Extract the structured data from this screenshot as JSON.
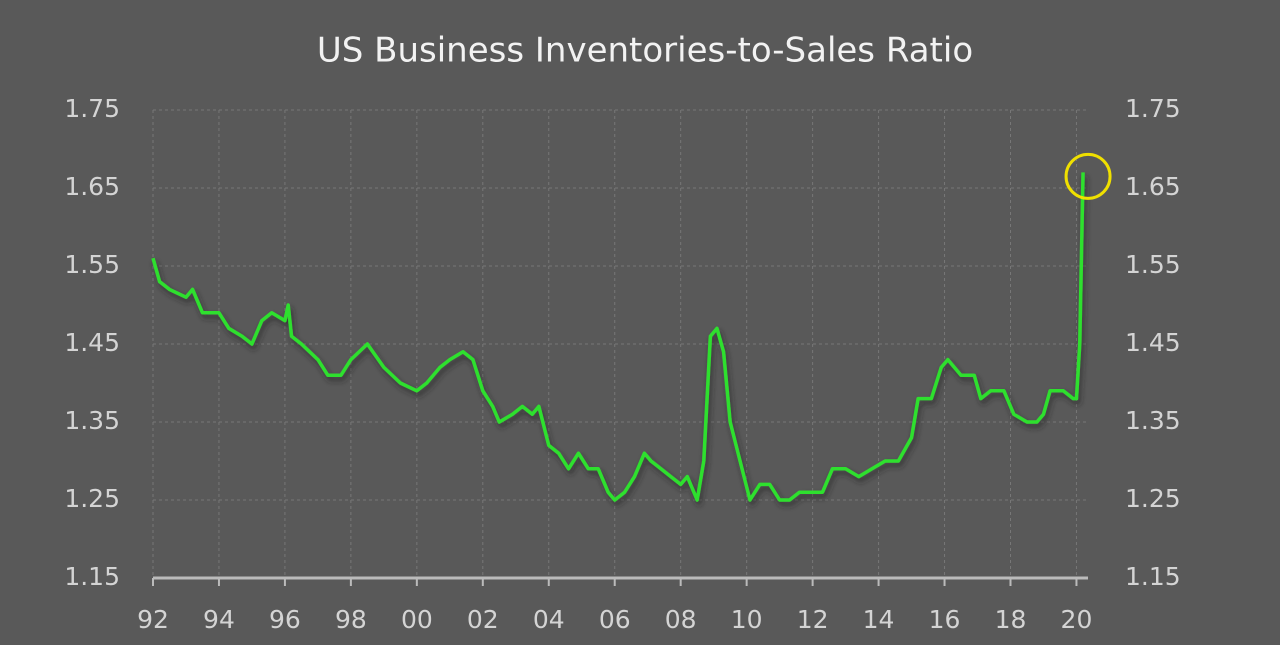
{
  "chart_data": {
    "type": "line",
    "title": "US Business Inventories-to-Sales Ratio",
    "x": [
      1992.0,
      1992.2,
      1992.5,
      1993.0,
      1993.2,
      1993.5,
      1994.0,
      1994.3,
      1994.7,
      1995.0,
      1995.3,
      1995.6,
      1996.0,
      1996.1,
      1996.2,
      1996.5,
      1997.0,
      1997.3,
      1997.7,
      1998.0,
      1998.5,
      1999.0,
      1999.5,
      2000.0,
      2000.3,
      2000.7,
      2001.0,
      2001.4,
      2001.7,
      2002.0,
      2002.3,
      2002.5,
      2002.9,
      2003.2,
      2003.5,
      2003.7,
      2004.0,
      2004.3,
      2004.6,
      2004.9,
      2005.2,
      2005.5,
      2005.8,
      2006.0,
      2006.3,
      2006.6,
      2006.9,
      2007.1,
      2007.4,
      2007.7,
      2008.0,
      2008.2,
      2008.5,
      2008.7,
      2008.9,
      2009.1,
      2009.3,
      2009.5,
      2009.8,
      2010.1,
      2010.4,
      2010.7,
      2011.0,
      2011.3,
      2011.6,
      2012.0,
      2012.3,
      2012.6,
      2013.0,
      2013.4,
      2013.8,
      2014.2,
      2014.6,
      2015.0,
      2015.2,
      2015.6,
      2015.9,
      2016.1,
      2016.5,
      2016.9,
      2017.1,
      2017.4,
      2017.8,
      2018.1,
      2018.5,
      2018.8,
      2019.0,
      2019.2,
      2019.6,
      2019.9,
      2020.0,
      2020.1,
      2020.2
    ],
    "values": [
      1.56,
      1.53,
      1.52,
      1.51,
      1.52,
      1.49,
      1.49,
      1.47,
      1.46,
      1.45,
      1.48,
      1.49,
      1.48,
      1.5,
      1.46,
      1.45,
      1.43,
      1.41,
      1.41,
      1.43,
      1.45,
      1.42,
      1.4,
      1.39,
      1.4,
      1.42,
      1.43,
      1.44,
      1.43,
      1.39,
      1.37,
      1.35,
      1.36,
      1.37,
      1.36,
      1.37,
      1.32,
      1.31,
      1.29,
      1.31,
      1.29,
      1.29,
      1.26,
      1.25,
      1.26,
      1.28,
      1.31,
      1.3,
      1.29,
      1.28,
      1.27,
      1.28,
      1.25,
      1.3,
      1.46,
      1.47,
      1.44,
      1.35,
      1.3,
      1.25,
      1.27,
      1.27,
      1.25,
      1.25,
      1.26,
      1.26,
      1.26,
      1.29,
      1.29,
      1.28,
      1.29,
      1.3,
      1.3,
      1.33,
      1.38,
      1.38,
      1.42,
      1.43,
      1.41,
      1.41,
      1.38,
      1.39,
      1.39,
      1.36,
      1.35,
      1.35,
      1.36,
      1.39,
      1.39,
      1.38,
      1.38,
      1.45,
      1.67
    ],
    "color": "#2ee02e",
    "xlim": [
      1992,
      2020.35
    ],
    "xticks": [
      {
        "value": 1992,
        "label": "92"
      },
      {
        "value": 1994,
        "label": "94"
      },
      {
        "value": 1996,
        "label": "96"
      },
      {
        "value": 1998,
        "label": "98"
      },
      {
        "value": 2000,
        "label": "00"
      },
      {
        "value": 2002,
        "label": "02"
      },
      {
        "value": 2004,
        "label": "04"
      },
      {
        "value": 2006,
        "label": "06"
      },
      {
        "value": 2008,
        "label": "08"
      },
      {
        "value": 2010,
        "label": "10"
      },
      {
        "value": 2012,
        "label": "12"
      },
      {
        "value": 2014,
        "label": "14"
      },
      {
        "value": 2016,
        "label": "16"
      },
      {
        "value": 2018,
        "label": "18"
      },
      {
        "value": 2020,
        "label": "20"
      }
    ],
    "ylim": [
      1.15,
      1.75
    ],
    "yticks": [
      1.15,
      1.25,
      1.35,
      1.45,
      1.55,
      1.65,
      1.75
    ],
    "grid": true
  }
}
